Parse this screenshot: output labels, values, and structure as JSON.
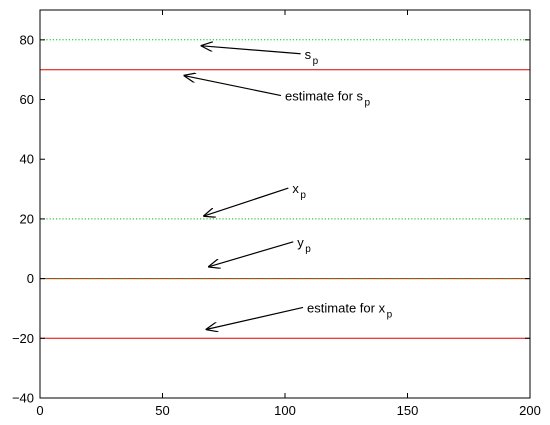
{
  "chart_data": {
    "type": "line",
    "title": "",
    "xlabel": "",
    "ylabel": "",
    "xlim": [
      0,
      200
    ],
    "ylim": [
      -40,
      90
    ],
    "x_ticks": [
      0,
      50,
      100,
      150,
      200
    ],
    "y_ticks": [
      -40,
      -20,
      0,
      20,
      40,
      60,
      80
    ],
    "x_tick_labels": [
      "0",
      "50",
      "100",
      "150",
      "200"
    ],
    "y_tick_labels": [
      "−40",
      "−20",
      "0",
      "20",
      "40",
      "60",
      "80"
    ],
    "grid": false,
    "series": [
      {
        "x": [
          0,
          200
        ],
        "y": [
          80,
          80
        ],
        "color": "#00c000",
        "style": "dotted"
      },
      {
        "x": [
          0,
          200
        ],
        "y": [
          70,
          70
        ],
        "color": "#e00000",
        "style": "solid"
      },
      {
        "x": [
          0,
          200
        ],
        "y": [
          20,
          20
        ],
        "color": "#00c000",
        "style": "dotted"
      },
      {
        "x": [
          0,
          200
        ],
        "y": [
          0,
          0
        ],
        "color": "#e00000",
        "style": "solid"
      },
      {
        "x": [
          0,
          200
        ],
        "y": [
          0,
          0
        ],
        "color": "#00c000",
        "style": "dotted"
      },
      {
        "x": [
          0,
          200
        ],
        "y": [
          -20,
          -20
        ],
        "color": "#e00000",
        "style": "solid"
      }
    ],
    "annotations": [
      {
        "main": "s",
        "sub": "p",
        "text_at": [
          108,
          75
        ],
        "arrow_to": [
          66,
          78
        ]
      },
      {
        "main": "estimate for s",
        "sub": "p",
        "text_at": [
          100,
          61
        ],
        "arrow_to": [
          59,
          68
        ]
      },
      {
        "main": "x",
        "sub": "p",
        "text_at": [
          103,
          30
        ],
        "arrow_to": [
          67,
          21
        ]
      },
      {
        "main": "y",
        "sub": "p",
        "text_at": [
          105,
          12
        ],
        "arrow_to": [
          69,
          4
        ]
      },
      {
        "main": "estimate for x",
        "sub": "p",
        "text_at": [
          109,
          -10
        ],
        "arrow_to": [
          68,
          -17
        ]
      }
    ]
  }
}
